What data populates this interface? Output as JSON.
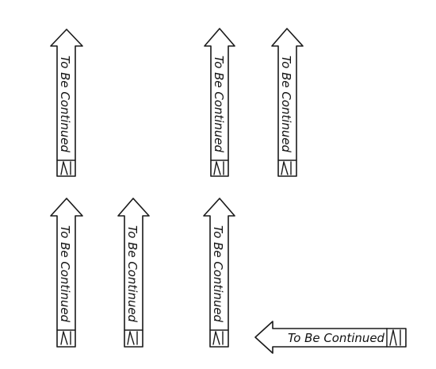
{
  "arrows": [
    {
      "direction": "up",
      "label": "To Be Continued"
    },
    {
      "direction": "up",
      "label": "To Be Continued"
    },
    {
      "direction": "up",
      "label": "To Be Continued"
    },
    {
      "direction": "up",
      "label": "To Be Continued"
    },
    {
      "direction": "up",
      "label": "To Be Continued"
    },
    {
      "direction": "up",
      "label": "To Be Continued"
    },
    {
      "direction": "left",
      "label": "To Be Continued"
    }
  ]
}
